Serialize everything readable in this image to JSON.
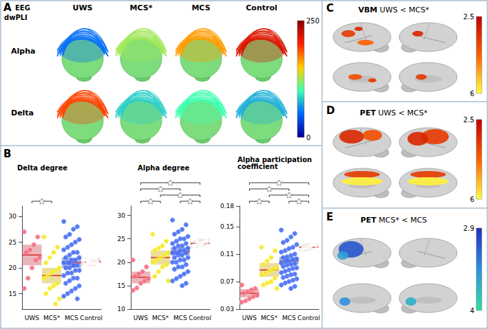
{
  "panel_A": {
    "label": "A",
    "title": [
      "EEG",
      "dwPLI"
    ],
    "columns": [
      "UWS",
      "MCS*",
      "MCS",
      "Control"
    ],
    "rows": [
      "Alpha",
      "Delta"
    ],
    "cells": [
      [
        55,
        125,
        165,
        215
      ],
      [
        190,
        85,
        100,
        75
      ]
    ],
    "colorbar": {
      "range": [
        250,
        0
      ],
      "ticks": [
        250,
        0
      ],
      "colors": [
        "#8b0000",
        "#ff2000",
        "#ffd000",
        "#40ffb0",
        "#0060ff",
        "#000090"
      ]
    }
  },
  "panel_B": {
    "label": "B"
  },
  "chart_data": [
    {
      "type": "strip",
      "title": "Delta degree",
      "categories": [
        "UWS",
        "MCS*",
        "MCS",
        "Control"
      ],
      "colors": [
        "#f26d7d",
        "#f5e431",
        "#4a6cf0",
        "#ffffff"
      ],
      "values": [
        [
          27,
          26,
          24.5,
          23.5,
          23,
          22,
          21.5,
          20,
          18,
          16
        ],
        [
          26,
          24,
          23,
          22,
          21,
          20,
          19.5,
          19,
          18.5,
          18,
          17,
          16.5,
          16,
          15,
          14,
          13
        ],
        [
          29,
          28,
          27.5,
          26.5,
          26,
          25.5,
          25,
          24.5,
          24,
          23.5,
          23,
          23,
          22.5,
          22,
          22,
          21.5,
          21.5,
          21,
          21,
          20.5,
          20.5,
          20,
          20,
          19.5,
          19.5,
          19,
          19,
          18.5,
          18,
          18,
          17.5,
          17,
          16.5,
          16,
          15.5,
          15,
          14.5,
          14,
          20.5,
          21
        ],
        [
          26,
          25,
          24,
          23.5,
          23,
          22.5,
          22,
          22,
          21.5,
          21.5,
          21,
          21,
          21,
          20.5,
          20.5,
          20,
          20,
          19.5,
          19,
          19,
          18.5,
          18,
          17.5,
          17,
          16
        ]
      ],
      "means": [
        22.5,
        18.5,
        21,
        21.2
      ],
      "box_low": [
        20.5,
        17,
        20,
        20.3
      ],
      "box_high": [
        24.5,
        20,
        22,
        22
      ],
      "ylim": [
        12,
        32
      ],
      "yticks": [
        15,
        20,
        25,
        30
      ],
      "grid": false,
      "significance": [
        {
          "pair": [
            "UWS",
            "MCS*"
          ],
          "label": "★"
        }
      ]
    },
    {
      "type": "strip",
      "title": "Alpha degree",
      "categories": [
        "UWS",
        "MCS*",
        "MCS",
        "Control"
      ],
      "colors": [
        "#f26d7d",
        "#f5e431",
        "#4a6cf0",
        "#ffffff"
      ],
      "values": [
        [
          20.5,
          19,
          18,
          17.5,
          17,
          16.5,
          16,
          15.5,
          14.5,
          14
        ],
        [
          26,
          24.5,
          23.5,
          23,
          22.5,
          22,
          21.5,
          21,
          20.5,
          20,
          19.5,
          19,
          18,
          17,
          16
        ],
        [
          29,
          28,
          27,
          26.5,
          26,
          25.5,
          25,
          25,
          24.5,
          24,
          24,
          23.5,
          23.5,
          23,
          23,
          22.5,
          22.5,
          22,
          22,
          22,
          21.5,
          21.5,
          21,
          21,
          20.5,
          20.5,
          20,
          20,
          19.5,
          19,
          19,
          18.5,
          18,
          17.5,
          17,
          16.5,
          16,
          15.5,
          15,
          22
        ],
        [
          30,
          29,
          28,
          27.5,
          27,
          26.5,
          26,
          25.5,
          25,
          25,
          24.5,
          24,
          24,
          23.5,
          23.5,
          23,
          23,
          22.5,
          22,
          21.5,
          21,
          20.5,
          20,
          19,
          18
        ]
      ],
      "means": [
        16.8,
        21,
        22.3,
        24
      ],
      "box_low": [
        15.5,
        19.5,
        21.5,
        23
      ],
      "box_high": [
        18,
        22.5,
        23.2,
        25
      ],
      "ylim": [
        10,
        32
      ],
      "yticks": [
        10,
        15,
        20,
        25,
        30
      ],
      "grid": false,
      "significance": [
        {
          "pair": [
            "UWS",
            "Control"
          ],
          "label": "★"
        },
        {
          "pair": [
            "MCS*",
            "Control"
          ],
          "label": "★"
        },
        {
          "pair": [
            "UWS",
            "MCS"
          ],
          "label": "★"
        },
        {
          "pair": [
            "UWS",
            "MCS*"
          ],
          "label": "★"
        },
        {
          "pair": [
            "MCS",
            "Control"
          ],
          "label": "★"
        }
      ]
    },
    {
      "type": "strip",
      "title": "Alpha participation coefficient",
      "categories": [
        "UWS",
        "MCS*",
        "MCS",
        "Control"
      ],
      "colors": [
        "#f26d7d",
        "#f5e431",
        "#4a6cf0",
        "#ffffff"
      ],
      "values": [
        [
          0.065,
          0.06,
          0.058,
          0.055,
          0.053,
          0.05,
          0.048,
          0.045,
          0.042,
          0.04
        ],
        [
          0.12,
          0.115,
          0.105,
          0.1,
          0.095,
          0.09,
          0.088,
          0.085,
          0.082,
          0.08,
          0.075,
          0.07,
          0.068,
          0.065,
          0.06
        ],
        [
          0.145,
          0.14,
          0.135,
          0.13,
          0.127,
          0.124,
          0.12,
          0.118,
          0.115,
          0.113,
          0.11,
          0.108,
          0.106,
          0.105,
          0.103,
          0.102,
          0.1,
          0.099,
          0.097,
          0.096,
          0.095,
          0.094,
          0.092,
          0.09,
          0.089,
          0.087,
          0.085,
          0.083,
          0.081,
          0.08,
          0.078,
          0.076,
          0.074,
          0.072,
          0.07,
          0.068,
          0.065,
          0.063,
          0.06,
          0.101
        ],
        [
          0.165,
          0.15,
          0.145,
          0.14,
          0.137,
          0.134,
          0.132,
          0.13,
          0.128,
          0.126,
          0.124,
          0.122,
          0.12,
          0.118,
          0.117,
          0.115,
          0.113,
          0.11,
          0.108,
          0.105,
          0.102,
          0.1,
          0.097,
          0.093,
          0.085
        ]
      ],
      "means": [
        0.053,
        0.087,
        0.1,
        0.12
      ],
      "box_low": [
        0.047,
        0.077,
        0.095,
        0.114
      ],
      "box_high": [
        0.059,
        0.097,
        0.106,
        0.126
      ],
      "ylim": [
        0.03,
        0.18
      ],
      "yticks": [
        0.03,
        0.07,
        0.11,
        0.15,
        0.18
      ],
      "grid": false,
      "significance": [
        {
          "pair": [
            "UWS",
            "Control"
          ],
          "label": "★"
        },
        {
          "pair": [
            "MCS*",
            "Control"
          ],
          "label": "★"
        },
        {
          "pair": [
            "UWS",
            "MCS"
          ],
          "label": "★"
        },
        {
          "pair": [
            "UWS",
            "MCS*"
          ],
          "label": "★"
        },
        {
          "pair": [
            "MCS",
            "Control"
          ],
          "label": "★"
        }
      ]
    }
  ],
  "panel_C": {
    "label": "C",
    "method": "VBM",
    "contrast": "UWS < MCS*",
    "colorbar": {
      "range": [
        2.5,
        6
      ],
      "ticks": [
        2.5,
        6
      ],
      "colors": [
        "#c00000",
        "#ff6000",
        "#ffff40"
      ]
    }
  },
  "panel_D": {
    "label": "D",
    "method": "PET",
    "contrast": "UWS < MCS*",
    "colorbar": {
      "range": [
        2.5,
        6
      ],
      "ticks": [
        2.5,
        6
      ],
      "colors": [
        "#c00000",
        "#ff6000",
        "#ffff40"
      ]
    }
  },
  "panel_E": {
    "label": "E",
    "method": "PET",
    "contrast": "MCS* < MCS",
    "colorbar": {
      "range": [
        2.9,
        4
      ],
      "ticks": [
        2.9,
        4
      ],
      "colors": [
        "#2030c0",
        "#3090e0",
        "#30e0a0"
      ]
    }
  }
}
